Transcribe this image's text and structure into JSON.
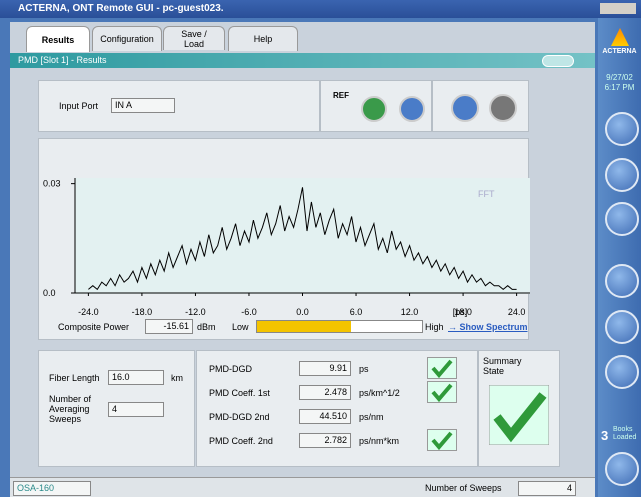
{
  "window": {
    "title": "ACTERNA, ONT Remote GUI - pc-guest023."
  },
  "tabs": [
    "Results",
    "Configuration",
    "Save / Load",
    "Help"
  ],
  "panel": {
    "title": "PMD [Slot 1] - Results"
  },
  "input": {
    "label": "Input Port",
    "value": "IN A",
    "ref": "REF"
  },
  "chart_data": {
    "type": "line",
    "fft_label": "FFT",
    "x_unit": "[ps]",
    "color": "#000000",
    "xlim": [
      -25.5,
      25.5
    ],
    "ylim": [
      0,
      0.031
    ],
    "xticks": [
      {
        "value": -24,
        "label": "-24.0"
      },
      {
        "value": -18,
        "label": "-18.0"
      },
      {
        "value": -12,
        "label": "-12.0"
      },
      {
        "value": -6,
        "label": "-6.0"
      },
      {
        "value": 0,
        "label": "0.0"
      },
      {
        "value": 6,
        "label": "6.0"
      },
      {
        "value": 12,
        "label": "12.0"
      },
      {
        "value": 18,
        "label": "18.0"
      },
      {
        "value": 24,
        "label": "24.0"
      }
    ],
    "yticks": [
      {
        "value": 0,
        "label": "0.0"
      },
      0.03
    ],
    "x": [
      -24,
      -23.5,
      -23,
      -22.5,
      -22,
      -21.5,
      -21,
      -20.5,
      -20,
      -19.5,
      -19,
      -18.5,
      -18,
      -17.5,
      -17,
      -16.5,
      -16,
      -15.5,
      -15,
      -14.5,
      -14,
      -13.5,
      -13,
      -12.5,
      -12,
      -11.5,
      -11,
      -10.5,
      -10,
      -9.5,
      -9,
      -8.5,
      -8,
      -7.5,
      -7,
      -6.5,
      -6,
      -5.5,
      -5,
      -4.5,
      -4,
      -3.5,
      -3,
      -2.5,
      -2,
      -1.5,
      -1,
      -0.5,
      0,
      0.5,
      1,
      1.5,
      2,
      2.5,
      3,
      3.5,
      4,
      4.5,
      5,
      5.5,
      6,
      6.5,
      7,
      7.5,
      8,
      8.5,
      9,
      9.5,
      10,
      10.5,
      11,
      11.5,
      12,
      12.5,
      13,
      13.5,
      14,
      14.5,
      15,
      15.5,
      16,
      16.5,
      17,
      17.5,
      18,
      18.5,
      19,
      19.5,
      20,
      20.5,
      21,
      21.5,
      22,
      22.5,
      23,
      23.5,
      24
    ],
    "values": [
      0.001,
      0.002,
      0.001,
      0.003,
      0.002,
      0.004,
      0.002,
      0.005,
      0.003,
      0.004,
      0.006,
      0.003,
      0.007,
      0.004,
      0.008,
      0.005,
      0.009,
      0.006,
      0.011,
      0.007,
      0.01,
      0.013,
      0.008,
      0.012,
      0.009,
      0.014,
      0.01,
      0.016,
      0.011,
      0.013,
      0.018,
      0.012,
      0.015,
      0.019,
      0.013,
      0.017,
      0.014,
      0.02,
      0.015,
      0.018,
      0.022,
      0.016,
      0.019,
      0.024,
      0.017,
      0.021,
      0.018,
      0.023,
      0.029,
      0.017,
      0.025,
      0.018,
      0.022,
      0.016,
      0.02,
      0.023,
      0.015,
      0.019,
      0.016,
      0.021,
      0.014,
      0.018,
      0.013,
      0.016,
      0.019,
      0.012,
      0.015,
      0.011,
      0.017,
      0.012,
      0.014,
      0.01,
      0.013,
      0.009,
      0.011,
      0.008,
      0.01,
      0.007,
      0.009,
      0.006,
      0.008,
      0.005,
      0.007,
      0.004,
      0.006,
      0.003,
      0.005,
      0.003,
      0.004,
      0.002,
      0.003,
      0.002,
      0.002,
      0.001,
      0.002,
      0.001,
      0.001
    ]
  },
  "power": {
    "label": "Composite Power",
    "value": "-15.61",
    "unit": "dBm",
    "low": "Low",
    "high": "High",
    "link": "Show Spectrum"
  },
  "fiber": {
    "length_label": "Fiber Length",
    "length": "16.0",
    "unit": "km",
    "sweeps_label": "Number of Averaging Sweeps",
    "sweeps": "4"
  },
  "results": [
    {
      "label": "PMD-DGD",
      "value": "9.91",
      "unit": "ps",
      "check": true
    },
    {
      "label": "PMD Coeff. 1st",
      "value": "2.478",
      "unit": "ps/km^1/2",
      "check": true
    },
    {
      "label": "PMD-DGD 2nd",
      "value": "44.510",
      "unit": "ps/nm",
      "check": false
    },
    {
      "label": "PMD Coeff. 2nd",
      "value": "2.782",
      "unit": "ps/nm*km",
      "check": true
    }
  ],
  "summary": "Summary State",
  "sidebar": {
    "brand": "ACTERNA",
    "date": "9/27/02",
    "time": "6:17 PM",
    "books_count": "3",
    "books_label": "Books Loaded"
  },
  "status": {
    "device": "OSA-160",
    "sweeps_label": "Number of Sweeps",
    "sweeps": "4"
  }
}
